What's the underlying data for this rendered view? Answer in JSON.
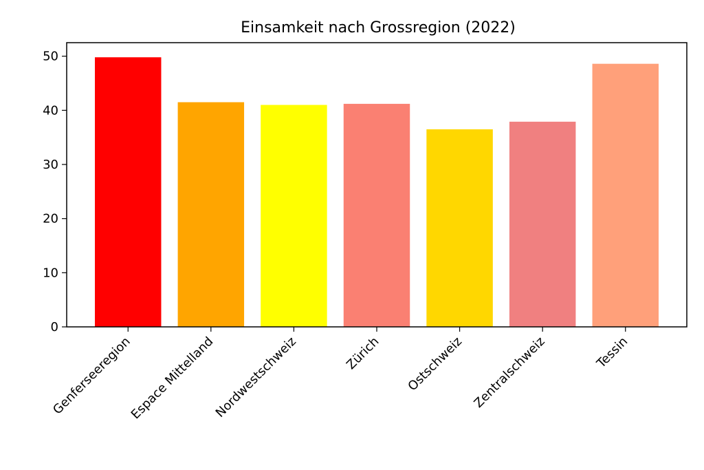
{
  "chart_data": {
    "type": "bar",
    "title": "Einsamkeit nach Grossregion (2022)",
    "xlabel": "",
    "ylabel": "",
    "categories": [
      "Genferseeregion",
      "Espace Mittelland",
      "Nordwestschweiz",
      "Zürich",
      "Ostschweiz",
      "Zentralschweiz",
      "Tessin"
    ],
    "values": [
      49.8,
      41.5,
      41.0,
      41.2,
      36.5,
      37.9,
      48.6
    ],
    "colors": [
      "#ff0000",
      "#ffa500",
      "#ffff00",
      "#fa8072",
      "#ffd700",
      "#f08080",
      "#ffa07a"
    ],
    "ylim": [
      0,
      52.5
    ],
    "yticks": [
      0,
      10,
      20,
      30,
      40,
      50
    ],
    "grid": false,
    "legend": "none"
  }
}
